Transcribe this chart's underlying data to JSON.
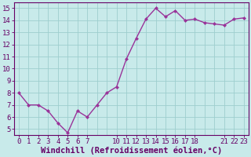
{
  "x": [
    0,
    1,
    2,
    3,
    4,
    5,
    6,
    7,
    8,
    9,
    10,
    11,
    12,
    13,
    14,
    15,
    16,
    17,
    18,
    19,
    20,
    21,
    22,
    23
  ],
  "y": [
    8.0,
    7.0,
    7.0,
    6.5,
    5.5,
    4.7,
    6.5,
    6.0,
    7.0,
    8.0,
    8.5,
    10.8,
    12.5,
    14.1,
    15.0,
    14.3,
    14.8,
    14.0,
    14.1,
    13.8,
    13.7,
    13.6,
    14.1,
    14.2
  ],
  "line_color": "#993399",
  "marker_color": "#993399",
  "bg_color": "#c8eaea",
  "grid_color": "#9ecece",
  "xlabel": "Windchill (Refroidissement éolien,°C)",
  "xlabel_color": "#660066",
  "xlabel_fontsize": 7.5,
  "xtick_labels": [
    "0",
    "1",
    "2",
    "3",
    "4",
    "5",
    "6",
    "7",
    "",
    "",
    "1011",
    "12",
    "13",
    "14",
    "15",
    "16",
    "17",
    "18",
    "",
    "",
    "",
    "212223",
    "",
    ""
  ],
  "xtick_positions": [
    0,
    1,
    2,
    3,
    4,
    5,
    6,
    7,
    10,
    11,
    12,
    13,
    14,
    15,
    16,
    17,
    18,
    21,
    22,
    23
  ],
  "xtick_display": [
    "0",
    "1",
    "2",
    "3",
    "4",
    "5",
    "6",
    "7",
    "10",
    "11",
    "12",
    "13",
    "14",
    "15",
    "16",
    "17",
    "18",
    "21",
    "22",
    "23"
  ],
  "yticks": [
    5,
    6,
    7,
    8,
    9,
    10,
    11,
    12,
    13,
    14,
    15
  ],
  "ylim": [
    4.5,
    15.5
  ],
  "xlim": [
    -0.5,
    23.5
  ],
  "tick_color": "#660066",
  "tick_fontsize": 6.5,
  "line_width": 1.0,
  "marker_size": 2.5
}
